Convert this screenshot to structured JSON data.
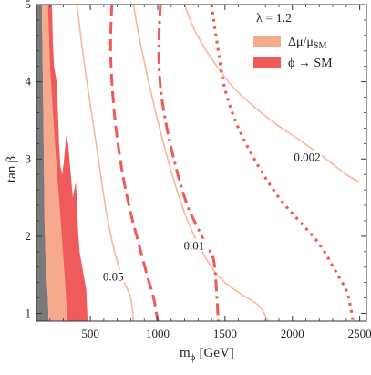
{
  "colors": {
    "background": "#ffffff",
    "axes": "#333333",
    "dark_region": "#7a7a7a",
    "light_salmon": "#f7a98e",
    "red_region": "#f05a5a",
    "thin_curve": "#f7b79a",
    "thick_curve": "#ee5a5a"
  },
  "chart_data": {
    "type": "contour",
    "title": "",
    "xlabel_main": "m",
    "xlabel_sub": "ϕ",
    "xlabel_unit": "[GeV]",
    "ylabel_main": "tan",
    "ylabel_sym": "β",
    "xlim": [
      100,
      2550
    ],
    "ylim": [
      0.9,
      5.0
    ],
    "xticks": [
      500,
      1000,
      1500,
      2000,
      2500
    ],
    "xtick_labels": [
      "500",
      "1000",
      "1500",
      "2000",
      "2500"
    ],
    "yticks": [
      1,
      2,
      3,
      4,
      5
    ],
    "ytick_labels": [
      "1",
      "2",
      "3",
      "4",
      "5"
    ],
    "legend": {
      "position": "top-right",
      "header": "λ = 1.2",
      "entries": [
        {
          "label": "Δμ/μ",
          "sub": "SM",
          "color": "#f7a98e"
        },
        {
          "label": "ϕ → SM",
          "sub": "",
          "color": "#f05a5a"
        }
      ]
    },
    "filled_regions": [
      {
        "name": "dark",
        "color": "#7a7a7a",
        "points": [
          [
            100,
            0.9
          ],
          [
            100,
            5.0
          ],
          [
            140,
            5.0
          ],
          [
            148,
            4.0
          ],
          [
            155,
            3.0
          ],
          [
            160,
            2.2
          ],
          [
            170,
            1.6
          ],
          [
            185,
            1.2
          ],
          [
            190,
            0.9
          ]
        ]
      },
      {
        "name": "delta-mu",
        "color": "#f7a98e",
        "points": [
          [
            140,
            5.0
          ],
          [
            148,
            4.0
          ],
          [
            155,
            3.0
          ],
          [
            160,
            2.2
          ],
          [
            170,
            1.6
          ],
          [
            185,
            1.2
          ],
          [
            190,
            0.9
          ],
          [
            330,
            0.9
          ],
          [
            320,
            1.2
          ],
          [
            300,
            1.7
          ],
          [
            275,
            2.3
          ],
          [
            245,
            3.0
          ],
          [
            222,
            3.6
          ],
          [
            200,
            4.2
          ],
          [
            185,
            5.0
          ]
        ]
      },
      {
        "name": "phi-sm",
        "color": "#f05a5a",
        "points": [
          [
            185,
            5.0
          ],
          [
            200,
            4.2
          ],
          [
            222,
            3.6
          ],
          [
            245,
            3.0
          ],
          [
            275,
            2.3
          ],
          [
            300,
            1.7
          ],
          [
            320,
            1.2
          ],
          [
            330,
            0.9
          ],
          [
            480,
            0.9
          ],
          [
            470,
            1.3
          ],
          [
            440,
            1.6
          ],
          [
            420,
            1.8
          ],
          [
            408,
            2.1
          ],
          [
            400,
            2.5
          ],
          [
            392,
            2.7
          ],
          [
            380,
            2.6
          ],
          [
            370,
            2.5
          ],
          [
            360,
            2.7
          ],
          [
            350,
            2.9
          ],
          [
            335,
            3.2
          ],
          [
            320,
            3.3
          ],
          [
            305,
            3.0
          ],
          [
            292,
            2.8
          ],
          [
            278,
            2.9
          ],
          [
            268,
            3.2
          ],
          [
            260,
            3.6
          ],
          [
            250,
            4.0
          ],
          [
            230,
            4.2
          ],
          [
            222,
            4.5
          ],
          [
            215,
            5.0
          ]
        ]
      }
    ],
    "contours": [
      {
        "label": "0.05",
        "style": "solid",
        "color": "#f7b79a",
        "points": [
          [
            400,
            5.0
          ],
          [
            450,
            4.3
          ],
          [
            500,
            3.7
          ],
          [
            560,
            3.0
          ],
          [
            620,
            2.3
          ],
          [
            680,
            1.8
          ],
          [
            740,
            1.45
          ],
          [
            800,
            1.2
          ],
          [
            820,
            0.9
          ]
        ]
      },
      {
        "label": "",
        "style": "dashed",
        "color": "#ee5a5a",
        "points": [
          [
            660,
            5.0
          ],
          [
            650,
            4.5
          ],
          [
            660,
            4.0
          ],
          [
            690,
            3.4
          ],
          [
            740,
            2.8
          ],
          [
            800,
            2.3
          ],
          [
            860,
            1.9
          ],
          [
            920,
            1.5
          ],
          [
            970,
            1.2
          ],
          [
            1000,
            0.9
          ]
        ]
      },
      {
        "label": "0.01",
        "style": "solid",
        "color": "#f7b79a",
        "points": [
          [
            820,
            5.0
          ],
          [
            860,
            4.6
          ],
          [
            920,
            4.1
          ],
          [
            1000,
            3.5
          ],
          [
            1090,
            2.9
          ],
          [
            1200,
            2.3
          ],
          [
            1300,
            1.9
          ],
          [
            1400,
            1.6
          ],
          [
            1500,
            1.4
          ],
          [
            1620,
            1.25
          ],
          [
            1750,
            1.1
          ],
          [
            1820,
            0.9
          ]
        ]
      },
      {
        "label": "",
        "style": "dashdot",
        "color": "#ee5a5a",
        "points": [
          [
            1020,
            5.0
          ],
          [
            1010,
            4.6
          ],
          [
            1010,
            4.2
          ],
          [
            1030,
            3.8
          ],
          [
            1080,
            3.3
          ],
          [
            1150,
            2.8
          ],
          [
            1220,
            2.4
          ],
          [
            1300,
            2.1
          ],
          [
            1370,
            1.85
          ],
          [
            1420,
            1.65
          ],
          [
            1450,
            0.9
          ]
        ]
      },
      {
        "label": "0.002",
        "style": "solid",
        "color": "#f7b79a",
        "points": [
          [
            1200,
            5.0
          ],
          [
            1280,
            4.65
          ],
          [
            1400,
            4.3
          ],
          [
            1550,
            3.95
          ],
          [
            1700,
            3.7
          ],
          [
            1880,
            3.45
          ],
          [
            2050,
            3.25
          ],
          [
            2250,
            3.0
          ],
          [
            2400,
            2.8
          ],
          [
            2500,
            2.7
          ]
        ]
      },
      {
        "label": "",
        "style": "dotted",
        "color": "#ee5a5a",
        "points": [
          [
            1400,
            5.0
          ],
          [
            1450,
            4.4
          ],
          [
            1500,
            3.9
          ],
          [
            1600,
            3.4
          ],
          [
            1750,
            2.9
          ],
          [
            1900,
            2.5
          ],
          [
            2050,
            2.2
          ],
          [
            2200,
            1.9
          ],
          [
            2320,
            1.55
          ],
          [
            2400,
            1.3
          ],
          [
            2430,
            1.1
          ],
          [
            2450,
            0.9
          ]
        ]
      }
    ],
    "contour_labels": [
      {
        "text": "0.05",
        "x": 670,
        "y": 1.45
      },
      {
        "text": "0.01",
        "x": 1270,
        "y": 1.85
      },
      {
        "text": "0.002",
        "x": 2110,
        "y": 3.0
      }
    ]
  }
}
